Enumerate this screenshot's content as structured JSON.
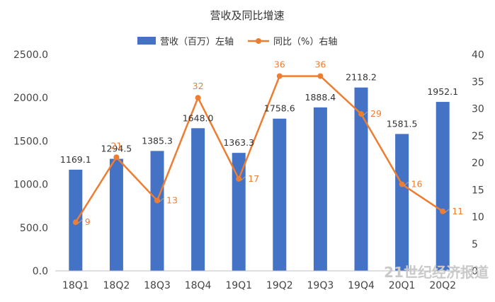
{
  "chart_data": {
    "type": "bar",
    "title": "营收及同比增速",
    "categories": [
      "18Q1",
      "18Q2",
      "18Q3",
      "18Q4",
      "19Q1",
      "19Q2",
      "19Q3",
      "19Q4",
      "20Q1",
      "20Q2"
    ],
    "series": [
      {
        "name": "营收（百万）左轴",
        "type": "bar",
        "axis": "left",
        "values": [
          1169.1,
          1294.5,
          1385.3,
          1648.0,
          1363.3,
          1758.6,
          1888.4,
          2118.2,
          1581.5,
          1952.1
        ],
        "labels": [
          "1169.1",
          "1294.5",
          "1385.3",
          "1648.0",
          "1363.3",
          "1758.6",
          "1888.4",
          "2118.2",
          "1581.5",
          "1952.1"
        ],
        "color": "#4472C4"
      },
      {
        "name": "同比（%）右轴",
        "type": "line",
        "axis": "right",
        "values": [
          9,
          21,
          13,
          32,
          17,
          36,
          36,
          29,
          16,
          11
        ],
        "labels": [
          "9",
          "21",
          "13",
          "32",
          "17",
          "36",
          "36",
          "29",
          "16",
          "11"
        ],
        "color": "#ED7D31"
      }
    ],
    "ylim_left": [
      0,
      2500
    ],
    "yticks_left": [
      "0.0",
      "500.0",
      "1000.0",
      "1500.0",
      "2000.0",
      "2500.0"
    ],
    "ylim_right": [
      0,
      40
    ],
    "yticks_right": [
      "0",
      "5",
      "10",
      "15",
      "20",
      "25",
      "30",
      "35",
      "40"
    ],
    "legend_position": "top-center",
    "grid": false
  },
  "watermark": "21世纪经济报道"
}
